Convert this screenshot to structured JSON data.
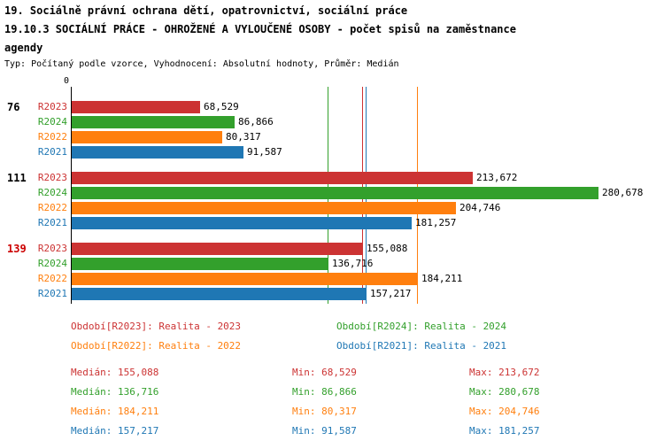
{
  "header": {
    "title_line1": "19. Sociálně právní ochrana dětí, opatrovnictví, sociální práce",
    "title_line2": "19.10.3 SOCIÁLNÍ PRÁCE - OHROŽENÉ A VYLOUČENÉ OSOBY - počet spisů na zaměstnance",
    "title_line3": "agendy",
    "subtitle": "Typ: Počítaný podle vzorce, Vyhodnocení: Absolutní hodnoty, Průměr: Medián"
  },
  "colors": {
    "R2023": "#cc3333",
    "R2024": "#33a02c",
    "R2022": "#ff7f0e",
    "R2021": "#1f77b4"
  },
  "chart_data": {
    "type": "bar",
    "orientation": "horizontal",
    "x_axis": {
      "origin_label": "0",
      "min": 0
    },
    "series_order": [
      "R2023",
      "R2024",
      "R2022",
      "R2021"
    ],
    "groups": [
      {
        "label": "76",
        "label_color": "#000000",
        "bars": [
          {
            "series": "R2023",
            "value": 68529,
            "display": "68,529"
          },
          {
            "series": "R2024",
            "value": 86866,
            "display": "86,866"
          },
          {
            "series": "R2022",
            "value": 80317,
            "display": "80,317"
          },
          {
            "series": "R2021",
            "value": 91587,
            "display": "91,587"
          }
        ]
      },
      {
        "label": "111",
        "label_color": "#000000",
        "bars": [
          {
            "series": "R2023",
            "value": 213672,
            "display": "213,672"
          },
          {
            "series": "R2024",
            "value": 280678,
            "display": "280,678"
          },
          {
            "series": "R2022",
            "value": 204746,
            "display": "204,746"
          },
          {
            "series": "R2021",
            "value": 181257,
            "display": "181,257"
          }
        ]
      },
      {
        "label": "139",
        "label_color": "#cc0000",
        "bars": [
          {
            "series": "R2023",
            "value": 155088,
            "display": "155,088"
          },
          {
            "series": "R2024",
            "value": 136716,
            "display": "136,716"
          },
          {
            "series": "R2022",
            "value": 184211,
            "display": "184,211"
          },
          {
            "series": "R2021",
            "value": 157217,
            "display": "157,217"
          }
        ]
      }
    ],
    "median_lines": [
      {
        "series": "R2023",
        "value": 155088
      },
      {
        "series": "R2024",
        "value": 136716
      },
      {
        "series": "R2022",
        "value": 184211
      },
      {
        "series": "R2021",
        "value": 157217
      }
    ],
    "legend": [
      {
        "series": "R2023",
        "label": "Období[R2023]: Realita - 2023"
      },
      {
        "series": "R2024",
        "label": "Období[R2024]: Realita - 2024"
      },
      {
        "series": "R2022",
        "label": "Období[R2022]: Realita - 2022"
      },
      {
        "series": "R2021",
        "label": "Období[R2021]: Realita - 2021"
      }
    ],
    "stats_labels": {
      "median": "Medián",
      "min": "Min",
      "max": "Max"
    },
    "stats": [
      {
        "series": "R2023",
        "median": "155,088",
        "min": "68,529",
        "max": "213,672"
      },
      {
        "series": "R2024",
        "median": "136,716",
        "min": "86,866",
        "max": "280,678"
      },
      {
        "series": "R2022",
        "median": "184,211",
        "min": "80,317",
        "max": "204,746"
      },
      {
        "series": "R2021",
        "median": "157,217",
        "min": "91,587",
        "max": "181,257"
      }
    ]
  }
}
